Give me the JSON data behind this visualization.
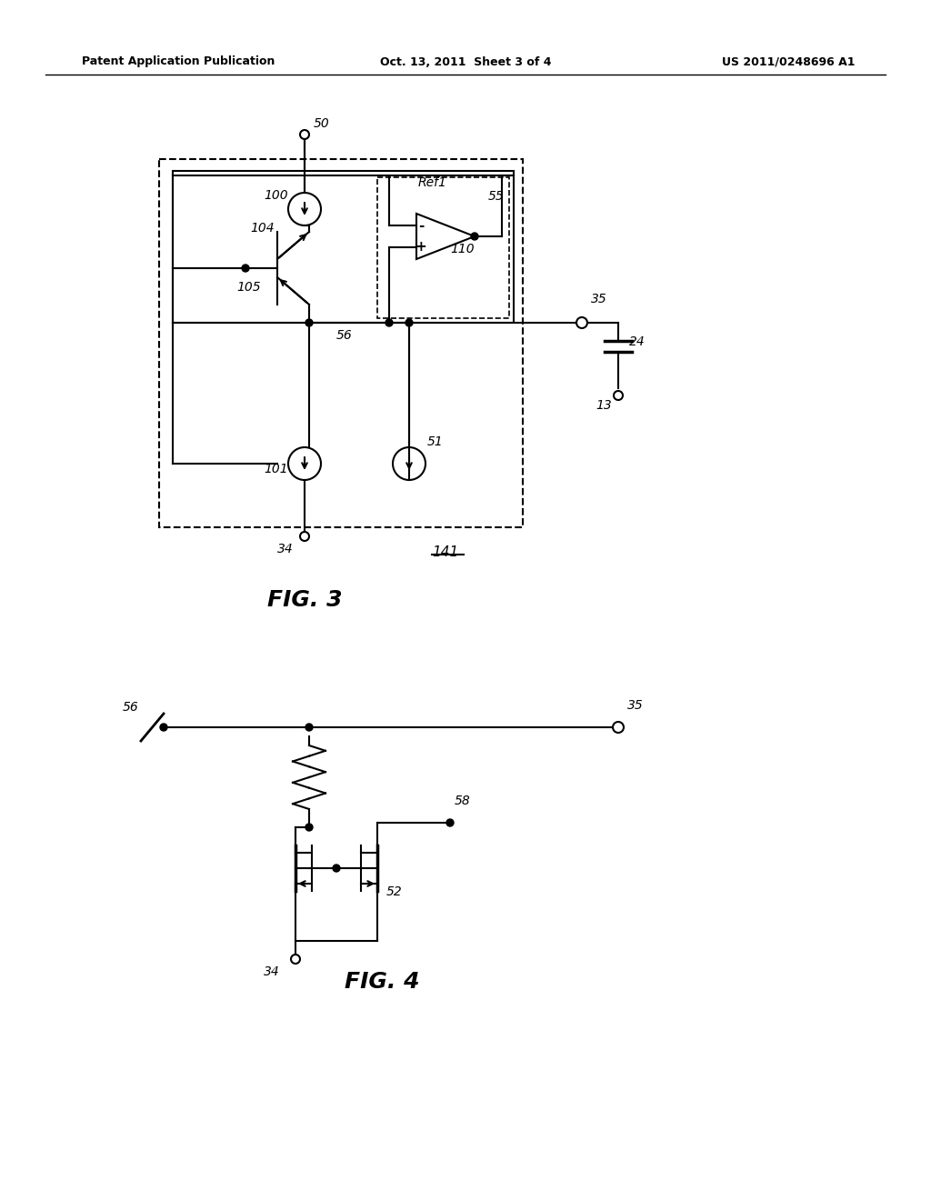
{
  "background_color": "#ffffff",
  "header_left": "Patent Application Publication",
  "header_center": "Oct. 13, 2011  Sheet 3 of 4",
  "header_right": "US 2011/0248696 A1",
  "fig3_label": "FIG. 3",
  "fig4_label": "FIG. 4",
  "label_141": "141"
}
